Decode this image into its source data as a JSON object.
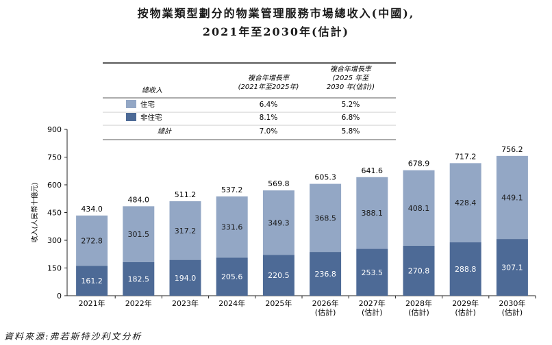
{
  "title_line1": "按物業類型劃分的物業管理服務市場總收入(中國),",
  "title_line2": "2021年至2030年(估計)",
  "source": "資料來源:弗若斯特沙利文分析",
  "cagr_table": {
    "col_label": "總收入",
    "col1_header": [
      "複合年增長率",
      "(2021年至2025年)"
    ],
    "col2_header": [
      "複合年增長率",
      "(2025 年至",
      "2030 年(估計))"
    ],
    "rows": [
      {
        "label": "住宅",
        "color": "#93a7c5",
        "v1": "6.4%",
        "v2": "5.2%"
      },
      {
        "label": "非住宅",
        "color": "#4d6a96",
        "v1": "8.1%",
        "v2": "6.8%"
      },
      {
        "label": "總計",
        "color": "",
        "v1": "7.0%",
        "v2": "5.8%"
      }
    ]
  },
  "chart_data": {
    "type": "bar",
    "stacked": true,
    "ylabel": "收入(人民幣十億元)",
    "ylim": [
      0,
      900
    ],
    "yticks": [
      0,
      150,
      300,
      450,
      600,
      750,
      900
    ],
    "categories": [
      [
        "2021年"
      ],
      [
        "2022年"
      ],
      [
        "2023年"
      ],
      [
        "2024年"
      ],
      [
        "2025年"
      ],
      [
        "2026年",
        "(估計)"
      ],
      [
        "2027年",
        "(估計)"
      ],
      [
        "2028年",
        "(估計)"
      ],
      [
        "2029年",
        "(估計)"
      ],
      [
        "2030年",
        "(估計)"
      ]
    ],
    "series": [
      {
        "name": "非住宅",
        "color": "#4d6a96",
        "values": [
          161.2,
          182.5,
          194.0,
          205.6,
          220.5,
          236.8,
          253.5,
          270.8,
          288.8,
          307.1
        ]
      },
      {
        "name": "住宅",
        "color": "#93a7c5",
        "values": [
          272.8,
          301.5,
          317.2,
          331.6,
          349.3,
          368.5,
          388.1,
          408.1,
          428.4,
          449.1
        ]
      }
    ],
    "totals": [
      434.0,
      484.0,
      511.2,
      537.2,
      569.8,
      605.3,
      641.6,
      678.9,
      717.2,
      756.2
    ],
    "grid": false
  }
}
